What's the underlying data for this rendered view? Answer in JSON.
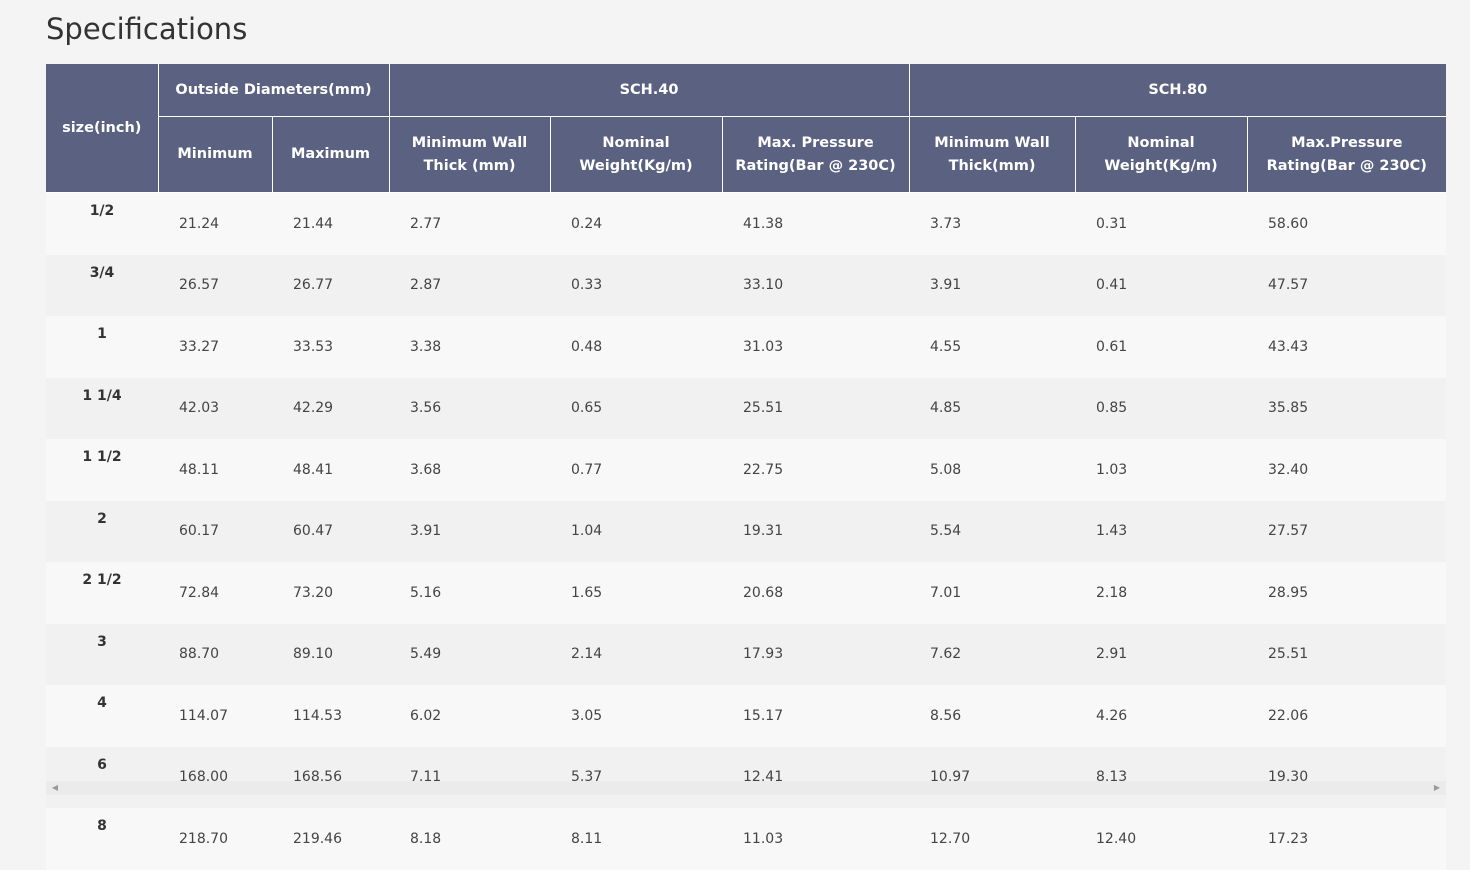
{
  "page": {
    "title": "Specifications"
  },
  "table": {
    "headers": {
      "size": "size(inch)",
      "od_group": "Outside Diameters(mm)",
      "sch40_group": "SCH.40",
      "sch80_group": "SCH.80",
      "od_min": "Minimum",
      "od_max": "Maximum",
      "sch40_wall": "Minimum Wall Thick (mm)",
      "sch40_weight": "Nominal Weight(Kg/m)",
      "sch40_pressure": "Max. Pressure Rating(Bar @ 230C)",
      "sch80_wall": "Minimum Wall Thick(mm)",
      "sch80_weight": "Nominal Weight(Kg/m)",
      "sch80_pressure": "Max.Pressure Rating(Bar @ 230C)"
    },
    "rows": [
      [
        "1/2",
        "21.24",
        "21.44",
        "2.77",
        "0.24",
        "41.38",
        "3.73",
        "0.31",
        "58.60"
      ],
      [
        "3/4",
        "26.57",
        "26.77",
        "2.87",
        "0.33",
        "33.10",
        "3.91",
        "0.41",
        "47.57"
      ],
      [
        "1",
        "33.27",
        "33.53",
        "3.38",
        "0.48",
        "31.03",
        "4.55",
        "0.61",
        "43.43"
      ],
      [
        "1 1/4",
        "42.03",
        "42.29",
        "3.56",
        "0.65",
        "25.51",
        "4.85",
        "0.85",
        "35.85"
      ],
      [
        "1 1/2",
        "48.11",
        "48.41",
        "3.68",
        "0.77",
        "22.75",
        "5.08",
        "1.03",
        "32.40"
      ],
      [
        "2",
        "60.17",
        "60.47",
        "3.91",
        "1.04",
        "19.31",
        "5.54",
        "1.43",
        "27.57"
      ],
      [
        "2 1/2",
        "72.84",
        "73.20",
        "5.16",
        "1.65",
        "20.68",
        "7.01",
        "2.18",
        "28.95"
      ],
      [
        "3",
        "88.70",
        "89.10",
        "5.49",
        "2.14",
        "17.93",
        "7.62",
        "2.91",
        "25.51"
      ],
      [
        "4",
        "114.07",
        "114.53",
        "6.02",
        "3.05",
        "15.17",
        "8.56",
        "4.26",
        "22.06"
      ],
      [
        "6",
        "168.00",
        "168.56",
        "7.11",
        "5.37",
        "12.41",
        "10.97",
        "8.13",
        "19.30"
      ],
      [
        "8",
        "218.70",
        "219.46",
        "8.18",
        "8.11",
        "11.03",
        "12.70",
        "12.40",
        "17.23"
      ]
    ]
  },
  "scrollbar": {
    "left_icon": "scroll-left-arrow-icon",
    "right_icon": "scroll-right-arrow-icon",
    "left_glyph": "◀",
    "right_glyph": "▶"
  },
  "colors": {
    "header_bg": "#5b6180",
    "row_odd": "#f8f8f8",
    "row_even": "#f1f1f1",
    "page_bg": "#f4f4f4"
  }
}
